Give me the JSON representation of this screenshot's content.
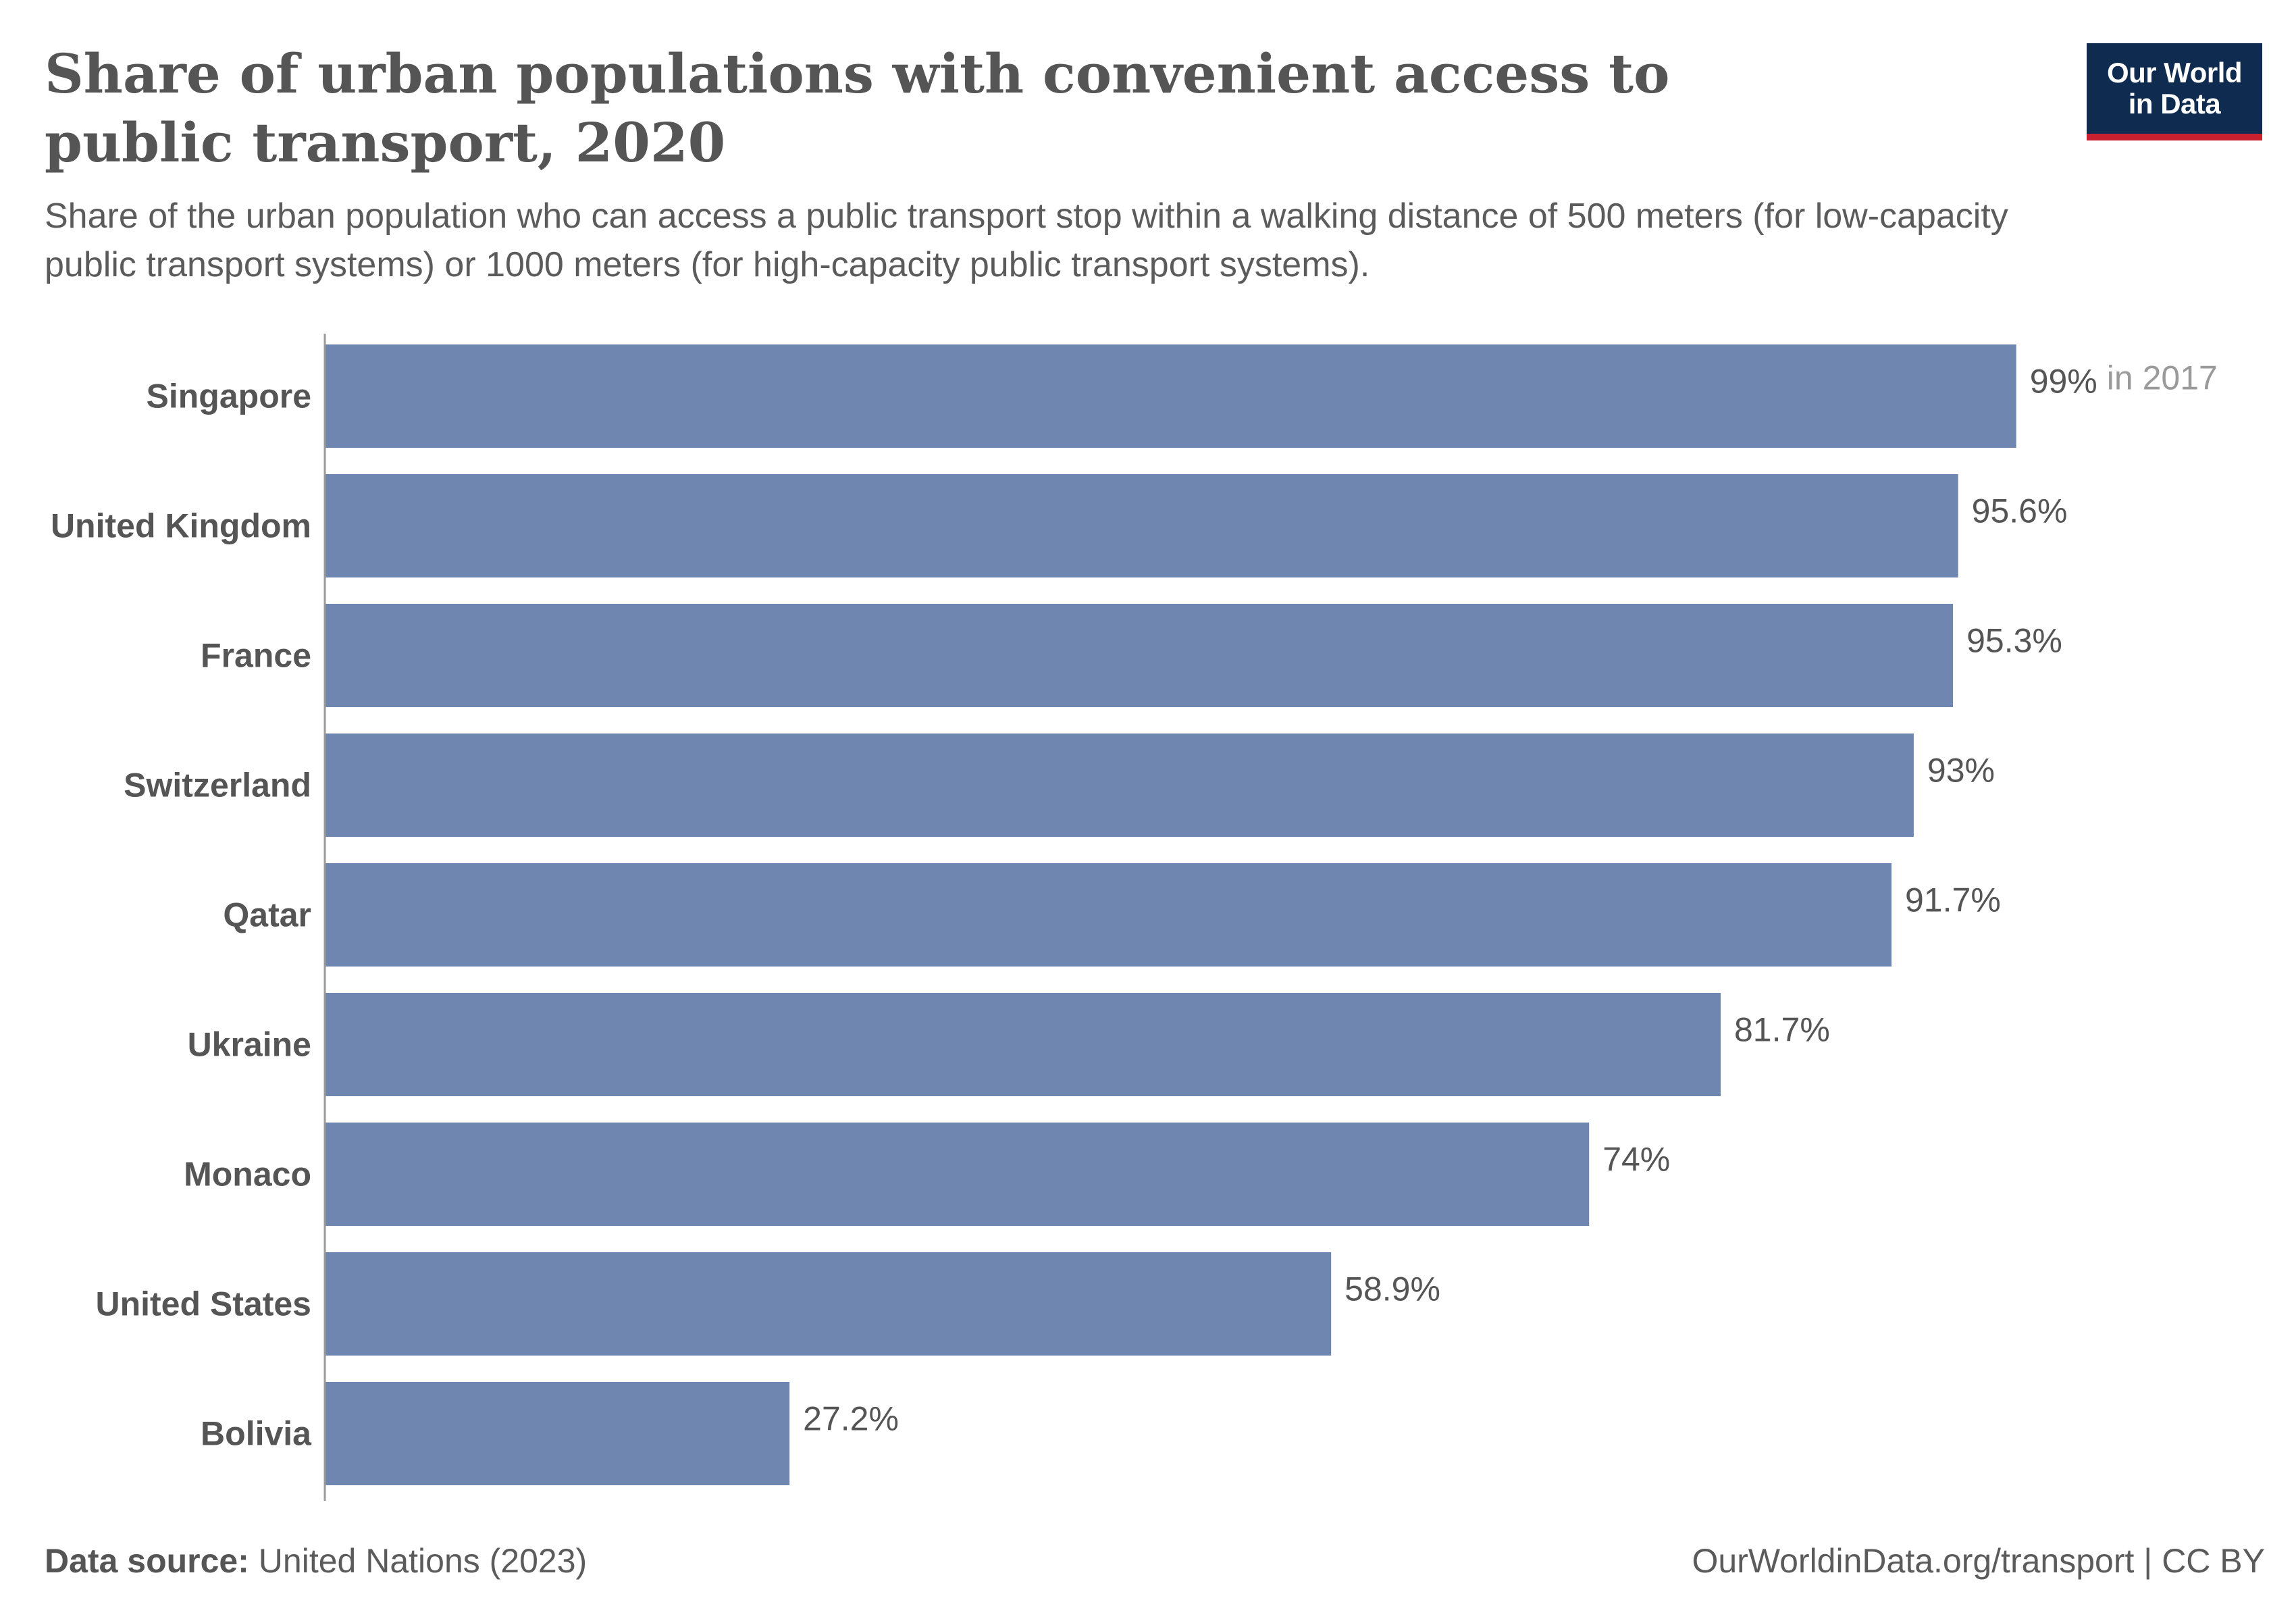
{
  "header": {
    "title": "Share of urban populations with convenient access to public transport, 2020",
    "subtitle": "Share of the urban population who can access a public transport stop within a walking distance of 500 meters (for low-capacity public transport systems) or 1000 meters (for high-capacity public transport systems).",
    "logo_line1": "Our World",
    "logo_line2": "in Data"
  },
  "footer": {
    "source_label": "Data source:",
    "source_value": "United Nations (2023)",
    "url": "OurWorldinData.org/transport",
    "license": "CC BY"
  },
  "colors": {
    "bar": "#6f87b0",
    "axis": "#999999",
    "logo_bg": "#0f2b4f",
    "logo_accent": "#c8202e"
  },
  "chart_data": {
    "type": "bar",
    "orientation": "horizontal",
    "categories": [
      "Singapore",
      "United Kingdom",
      "France",
      "Switzerland",
      "Qatar",
      "Ukraine",
      "Monaco",
      "United States",
      "Bolivia"
    ],
    "values": [
      99,
      95.6,
      95.3,
      93,
      91.7,
      81.7,
      74,
      58.9,
      27.2
    ],
    "value_labels": [
      "99%",
      "95.6%",
      "95.3%",
      "93%",
      "91.7%",
      "81.7%",
      "74%",
      "58.9%",
      "27.2%"
    ],
    "notes": [
      "in 2017",
      "",
      "",
      "",
      "",
      "",
      "",
      "",
      ""
    ],
    "xlim": [
      0,
      100
    ],
    "unit": "%"
  }
}
